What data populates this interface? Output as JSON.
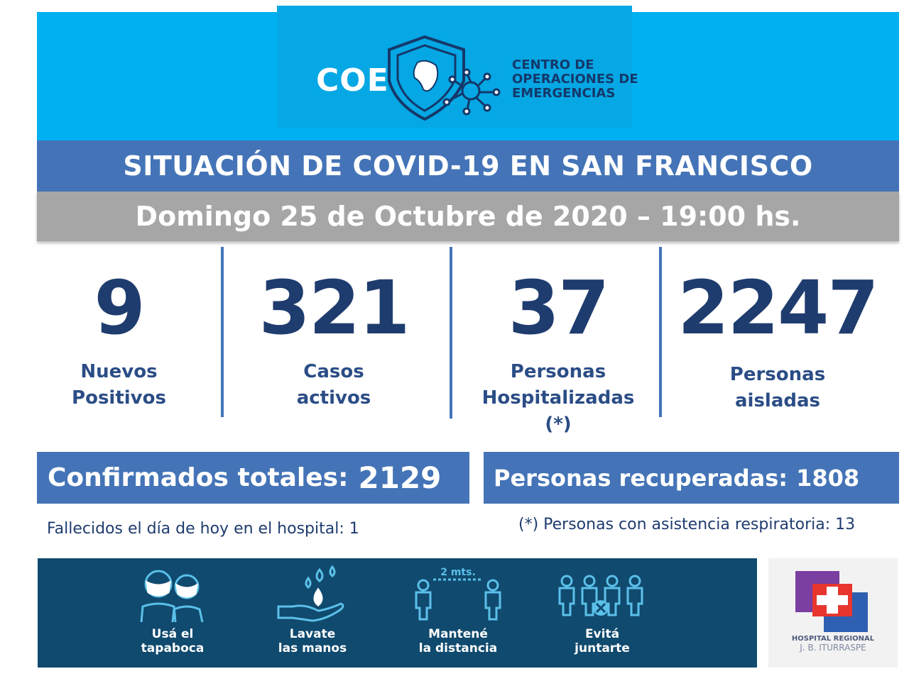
{
  "header": {
    "logo_text": "COE",
    "subtitle_lines": [
      "CENTRO DE",
      "OPERACIONES DE",
      "EMERGENCIAS"
    ]
  },
  "title": "SITUACIÓN DE COVID-19 EN SAN FRANCISCO",
  "date": "Domingo 25 de Octubre de 2020 – 19:00 hs.",
  "stats": [
    {
      "value": "9",
      "label_lines": [
        "Nuevos",
        "Positivos"
      ]
    },
    {
      "value": "321",
      "label_lines": [
        "Casos",
        "activos"
      ]
    },
    {
      "value": "37",
      "label_lines": [
        "Personas",
        "Hospitalizadas",
        "(*)"
      ]
    },
    {
      "value": "2247",
      "label_lines": [
        "Personas",
        "aisladas"
      ]
    }
  ],
  "totals": {
    "confirmed_label": "Confirmados totales:",
    "confirmed_value": "2129",
    "recovered_label": "Personas recuperadas:",
    "recovered_value": "1808"
  },
  "notes": {
    "deaths": "Fallecidos el día de hoy en el hospital: 1",
    "respiratory": "(*) Personas con asistencia respiratoria: 13"
  },
  "tips": [
    {
      "icon": "mask-people-icon",
      "label_lines": [
        "Usá el",
        "tapaboca"
      ]
    },
    {
      "icon": "hand-wash-icon",
      "label_lines": [
        "Lavate",
        "las manos"
      ]
    },
    {
      "icon": "distance-icon",
      "label_lines": [
        "Mantené",
        "la distancia"
      ],
      "icon_text": "2 mts."
    },
    {
      "icon": "no-gathering-icon",
      "label_lines": [
        "Evitá",
        "juntarte"
      ]
    }
  ],
  "hospital": {
    "name_lines": [
      "HOSPITAL REGIONAL",
      "J. B. ITURRASPE"
    ]
  },
  "colors": {
    "header_blue": "#00b0f0",
    "title_blue": "#4474b7",
    "date_gray": "#a6a6a6",
    "stat_navy": "#1f3c6e",
    "footer_teal": "#104a6e"
  }
}
